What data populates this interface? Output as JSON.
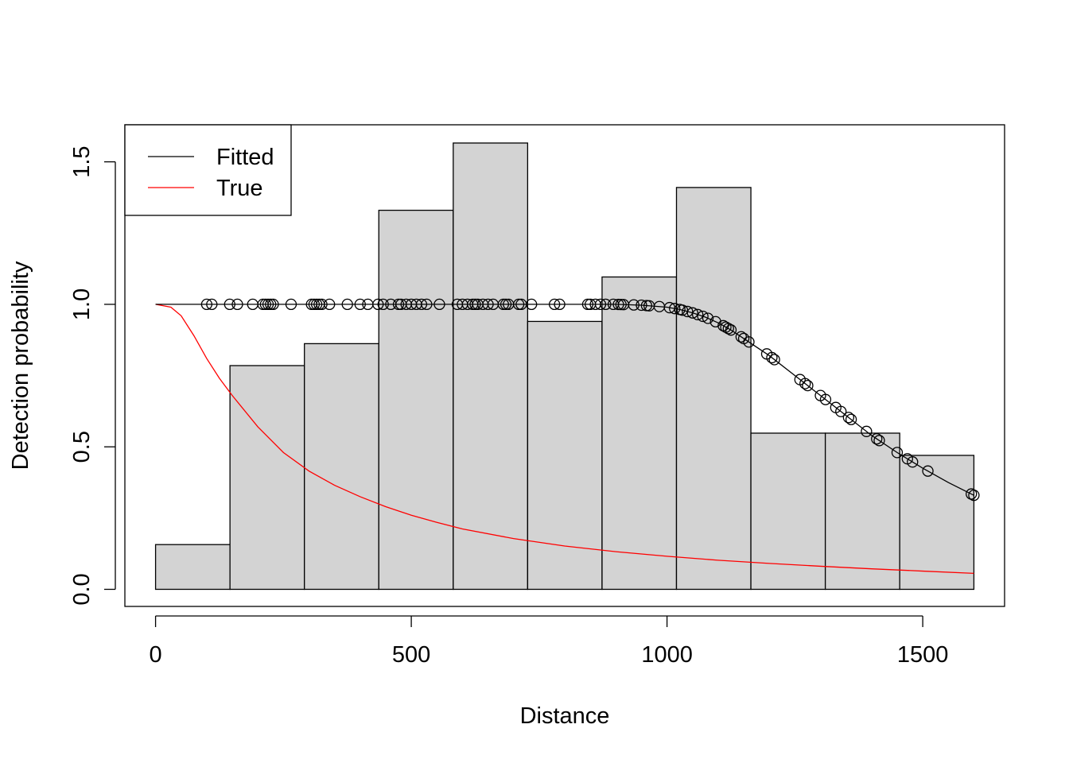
{
  "chart_data": {
    "type": "histogram",
    "xlabel": "Distance",
    "ylabel": "Detection probability",
    "xlim": [
      -60,
      1660
    ],
    "ylim": [
      -0.06,
      1.63
    ],
    "x_ticks": [
      0,
      500,
      1000,
      1500
    ],
    "y_ticks": [
      0.0,
      0.5,
      1.0,
      1.5
    ],
    "x_tick_labels": [
      "0",
      "500",
      "1000",
      "1500"
    ],
    "y_tick_labels": [
      "0.0",
      "0.5",
      "1.0",
      "1.5"
    ],
    "legend": {
      "position": "top-left",
      "entries": [
        {
          "label": "Fitted",
          "color": "#000000"
        },
        {
          "label": "True",
          "color": "#ff0000"
        }
      ]
    },
    "histogram": {
      "breaks": [
        0,
        145.5,
        291,
        436.5,
        582,
        727.5,
        873,
        1018.5,
        1164,
        1309.5,
        1455,
        1600
      ],
      "heights": [
        0.157,
        0.785,
        0.862,
        1.33,
        1.566,
        0.94,
        1.096,
        1.41,
        0.548,
        0.548,
        0.47
      ],
      "fill": "#d3d3d3"
    },
    "fitted_curve": {
      "color": "#000000",
      "x": [
        0,
        100,
        200,
        300,
        400,
        500,
        600,
        700,
        800,
        900,
        950,
        1000,
        1025,
        1050,
        1075,
        1100,
        1125,
        1150,
        1175,
        1200,
        1250,
        1300,
        1350,
        1400,
        1450,
        1500,
        1550,
        1600
      ],
      "y": [
        1.0,
        1.0,
        1.0,
        1.0,
        1.0,
        1.0,
        1.0,
        1.0,
        1.0,
        1.0,
        0.997,
        0.99,
        0.982,
        0.97,
        0.955,
        0.935,
        0.91,
        0.88,
        0.85,
        0.82,
        0.75,
        0.68,
        0.61,
        0.54,
        0.48,
        0.425,
        0.375,
        0.33
      ]
    },
    "true_curve": {
      "color": "#ff0000",
      "x": [
        0,
        30,
        50,
        75,
        100,
        125,
        150,
        200,
        250,
        300,
        350,
        400,
        450,
        500,
        550,
        600,
        700,
        800,
        900,
        1000,
        1100,
        1200,
        1300,
        1400,
        1500,
        1600
      ],
      "y": [
        1.0,
        0.99,
        0.96,
        0.89,
        0.81,
        0.74,
        0.68,
        0.57,
        0.48,
        0.415,
        0.365,
        0.325,
        0.29,
        0.26,
        0.235,
        0.212,
        0.178,
        0.152,
        0.132,
        0.116,
        0.102,
        0.091,
        0.081,
        0.072,
        0.064,
        0.056
      ]
    },
    "observations": {
      "x": [
        100,
        110,
        145,
        160,
        190,
        210,
        215,
        220,
        225,
        230,
        265,
        305,
        310,
        315,
        320,
        325,
        340,
        375,
        400,
        415,
        435,
        445,
        460,
        475,
        480,
        490,
        500,
        510,
        520,
        530,
        555,
        590,
        600,
        610,
        620,
        625,
        630,
        640,
        650,
        660,
        680,
        685,
        690,
        710,
        715,
        735,
        780,
        790,
        845,
        850,
        860,
        870,
        880,
        895,
        905,
        910,
        915,
        935,
        950,
        960,
        965,
        985,
        1005,
        1015,
        1025,
        1030,
        1040,
        1050,
        1060,
        1070,
        1080,
        1095,
        1110,
        1115,
        1120,
        1125,
        1145,
        1150,
        1160,
        1195,
        1205,
        1210,
        1260,
        1270,
        1275,
        1300,
        1310,
        1330,
        1340,
        1355,
        1360,
        1390,
        1410,
        1415,
        1450,
        1470,
        1480,
        1510,
        1595,
        1600
      ]
    }
  }
}
